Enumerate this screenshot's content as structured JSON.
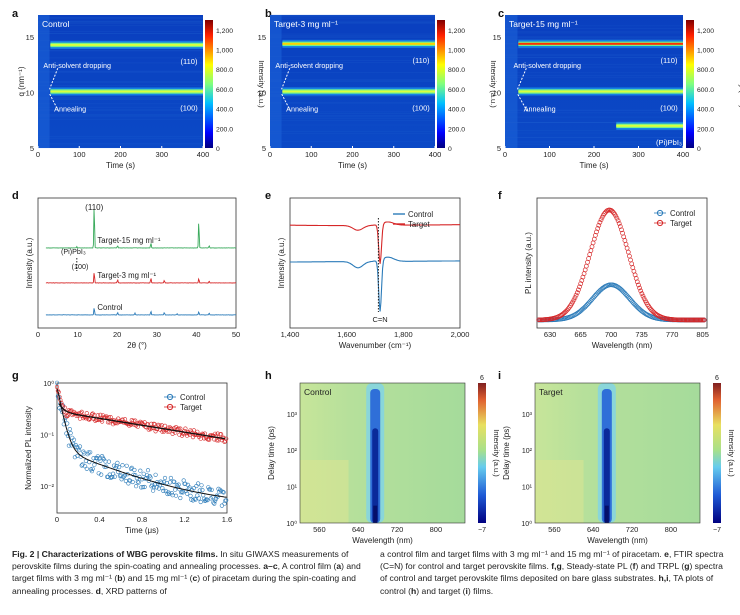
{
  "panel_labels": [
    "a",
    "b",
    "c",
    "d",
    "e",
    "f",
    "g",
    "h",
    "i"
  ],
  "chart_data": [
    {
      "id": "a",
      "type": "heatmap",
      "title": "Control",
      "xlabel": "Time (s)",
      "ylabel": "q (nm⁻¹)",
      "xlim": [
        0,
        400
      ],
      "ylim": [
        5,
        17
      ],
      "xticks": [
        0,
        100,
        200,
        300,
        400
      ],
      "yticks": [
        5,
        10,
        15
      ],
      "colorbar": {
        "label": "Intensity (a.u.)",
        "range": [
          0,
          1300
        ],
        "ticks": [
          "0",
          "200.0",
          "400.0",
          "600.0",
          "800.0",
          "1,000",
          "1,200"
        ]
      },
      "bands": [
        {
          "label": "(110)",
          "q": 14.3,
          "t_start": 30,
          "strength": 0.55
        },
        {
          "label": "(100)",
          "q": 10.1,
          "t_start": 30,
          "strength": 0.7
        }
      ],
      "annotations": [
        "Anti-solvent dropping",
        "Annealing"
      ]
    },
    {
      "id": "b",
      "type": "heatmap",
      "title": "Target-3 mg ml⁻¹",
      "xlabel": "Time (s)",
      "ylabel": "Intensity (a.u.)",
      "xlim": [
        0,
        400
      ],
      "ylim": [
        5,
        17
      ],
      "xticks": [
        0,
        100,
        200,
        300,
        400
      ],
      "yticks": [
        5,
        10,
        15
      ],
      "colorbar": {
        "label": "Intensity (a.u.)",
        "range": [
          0,
          1300
        ],
        "ticks": [
          "0",
          "200.0",
          "400.0",
          "600.0",
          "800.0",
          "1,000",
          "1,200"
        ]
      },
      "bands": [
        {
          "label": "(110)",
          "q": 14.4,
          "t_start": 30,
          "strength": 0.85
        },
        {
          "label": "(100)",
          "q": 10.1,
          "t_start": 30,
          "strength": 0.6
        }
      ],
      "annotations": [
        "Anti-solvent dropping",
        "Annealing"
      ]
    },
    {
      "id": "c",
      "type": "heatmap",
      "title": "Target-15 mg ml⁻¹",
      "xlabel": "Time (s)",
      "ylabel": "",
      "xlim": [
        0,
        400
      ],
      "ylim": [
        5,
        17
      ],
      "xticks": [
        0,
        100,
        200,
        300,
        400
      ],
      "yticks": [
        5,
        10,
        15
      ],
      "colorbar": {
        "label": "Intensity (a.u.)",
        "range": [
          0,
          1300
        ],
        "ticks": [
          "0",
          "200.0",
          "400.0",
          "600.0",
          "800.0",
          "1,000",
          "1,200"
        ]
      },
      "bands": [
        {
          "label": "(110)",
          "q": 14.4,
          "t_start": 30,
          "strength": 1.0
        },
        {
          "label": "(100)",
          "q": 10.1,
          "t_start": 30,
          "strength": 0.6
        },
        {
          "label": "(Pi)PbI₃",
          "q": 7.0,
          "t_start": 250,
          "strength": 0.5
        }
      ],
      "annotations": [
        "Anti-solvent dropping",
        "Annealing"
      ]
    },
    {
      "id": "d",
      "type": "line",
      "xlabel": "2θ (°)",
      "ylabel": "Intensity (a.u.)",
      "xlim": [
        0,
        50
      ],
      "xticks": [
        0,
        10,
        20,
        30,
        40,
        50
      ],
      "series": [
        {
          "name": "Control",
          "color": "#2b7bb9",
          "offset": 0.0,
          "peaks": [
            [
              14.2,
              0.6
            ],
            [
              20.1,
              0.2
            ],
            [
              24.5,
              0.15
            ],
            [
              28.5,
              0.3
            ],
            [
              31.9,
              0.2
            ],
            [
              35.1,
              0.1
            ],
            [
              40.6,
              0.25
            ],
            [
              43.2,
              0.15
            ]
          ]
        },
        {
          "name": "Target-3 mg ml⁻¹",
          "color": "#d62728",
          "offset": 1.0,
          "peaks": [
            [
              14.2,
              0.9
            ],
            [
              20.1,
              0.25
            ],
            [
              28.5,
              0.4
            ],
            [
              31.9,
              0.2
            ],
            [
              40.6,
              0.35
            ],
            [
              43.2,
              0.15
            ]
          ]
        },
        {
          "name": "Target-15 mg ml⁻¹",
          "color": "#3aaa5c",
          "offset": 2.0,
          "peaks": [
            [
              9.8,
              0.12
            ],
            [
              14.2,
              4.2
            ],
            [
              20.1,
              0.2
            ],
            [
              28.5,
              0.5
            ],
            [
              40.6,
              2.6
            ],
            [
              43.2,
              0.2
            ]
          ]
        }
      ],
      "annotations": [
        "(110)",
        "(Pi)PbI₃",
        "(100)"
      ]
    },
    {
      "id": "e",
      "type": "line",
      "xlabel": "Wavenumber (cm⁻¹)",
      "ylabel": "Intensity (a.u.)",
      "xlim": [
        1400,
        2000
      ],
      "xticks": [
        1400,
        1600,
        1800,
        2000
      ],
      "series": [
        {
          "name": "Control",
          "color": "#2b7bb9"
        },
        {
          "name": "Target",
          "color": "#d62728"
        }
      ],
      "dips": [
        {
          "x": 1645,
          "depth": 0.15
        },
        {
          "x": 1718,
          "depth": 0.85
        }
      ],
      "annotations": [
        "C=N"
      ]
    },
    {
      "id": "f",
      "type": "scatter",
      "xlabel": "Wavelength (nm)",
      "ylabel": "PL intensity (a.u.)",
      "xlim": [
        615,
        810
      ],
      "xticks": [
        630,
        665,
        700,
        735,
        770,
        805
      ],
      "series": [
        {
          "name": "Control",
          "color": "#2b7bb9",
          "peak_x": 700,
          "peak_y": 0.32,
          "fwhm": 50
        },
        {
          "name": "Target",
          "color": "#d62728",
          "peak_x": 698,
          "peak_y": 1.0,
          "fwhm": 52
        }
      ]
    },
    {
      "id": "g",
      "type": "scatter",
      "xlabel": "Time (μs)",
      "ylabel": "Normalized PL intensity",
      "xlim": [
        0,
        1.6
      ],
      "ylim_log": [
        0.003,
        1
      ],
      "xticks": [
        0,
        0.4,
        0.8,
        1.2,
        1.6
      ],
      "yticks": [
        "10⁰",
        "10⁻¹",
        "10⁻²"
      ],
      "series": [
        {
          "name": "Control",
          "color": "#2b7bb9",
          "tau_fast_us": 0.04,
          "tau_slow_us": 0.5,
          "floor": 0.004
        },
        {
          "name": "Target",
          "color": "#d62728",
          "tau_fast_us": 0.02,
          "tau_slow_us": 1.3,
          "a_slow": 0.28
        }
      ]
    },
    {
      "id": "h",
      "type": "heatmap",
      "title": "Control",
      "xlabel": "Wavelength (nm)",
      "ylabel": "Delay time (ps)",
      "xlim": [
        520,
        860
      ],
      "xticks": [
        560,
        640,
        720,
        800
      ],
      "ylim_log": [
        1,
        7000
      ],
      "yticks": [
        "10⁰",
        "10¹",
        "10²",
        "10³"
      ],
      "colorbar": {
        "label": "Intensity (a.u.)",
        "range": [
          -7,
          6
        ],
        "ticks": [
          "6",
          "−7"
        ]
      },
      "bleach_nm": 675
    },
    {
      "id": "i",
      "type": "heatmap",
      "title": "Target",
      "xlabel": "Wavelength (nm)",
      "ylabel": "Delay time (ps)",
      "xlim": [
        520,
        860
      ],
      "xticks": [
        560,
        640,
        720,
        800
      ],
      "ylim_log": [
        1,
        7000
      ],
      "yticks": [
        "10⁰",
        "10¹",
        "10²",
        "10³"
      ],
      "colorbar": {
        "label": "Intensity (a.u.)",
        "range": [
          -7,
          6
        ],
        "ticks": [
          "6",
          "−7"
        ]
      },
      "bleach_nm": 668
    }
  ],
  "caption": {
    "left_bold": "Fig. 2 | Characterizations of WBG perovskite films.",
    "left_text": " In situ GIWAXS measurements of perovskite films during the spin-coating and annealing processes. ",
    "left_ac": "a–c",
    "left_text2": ", A control film (",
    "left_text3": ") and target films with 3 mg ml⁻¹ (",
    "left_text4": ") and 15 mg ml⁻¹ (",
    "left_text5": ") of piracetam during the spin-coating and annealing processes. ",
    "left_text6": ", XRD patterns of",
    "right_text1": "a control film and target films with 3 mg ml⁻¹ and 15 mg ml⁻¹ of piracetam. ",
    "right_text2": ", FTIR spectra (C=N) for control and target perovskite films. ",
    "right_text3": ", Steady-state PL (",
    "right_text4": ") and TRPL (",
    "right_text5": ") spectra of control and target perovskite films deposited on bare glass substrates. ",
    "right_text6": ", TA plots of control (",
    "right_text7": ") and target (",
    "right_text8": ") films."
  }
}
